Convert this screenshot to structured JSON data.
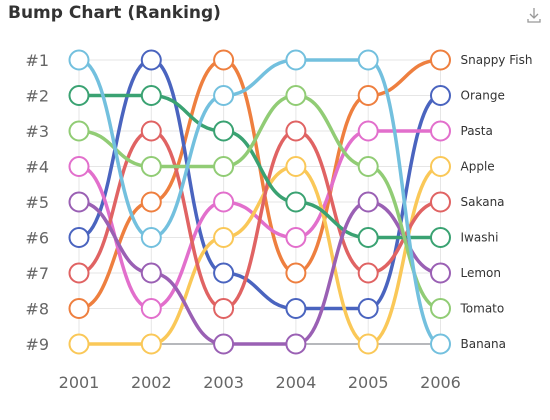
{
  "chart_data": {
    "type": "line",
    "title": "Bump Chart (Ranking)",
    "x": [
      "2001",
      "2002",
      "2003",
      "2004",
      "2005",
      "2006"
    ],
    "y_categories": [
      "#1",
      "#2",
      "#3",
      "#4",
      "#5",
      "#6",
      "#7",
      "#8",
      "#9"
    ],
    "y_inverse": true,
    "series": [
      {
        "name": "Snappy Fish",
        "color": "#ee7f3f",
        "ranks": [
          8,
          5,
          1,
          7,
          2,
          1
        ]
      },
      {
        "name": "Orange",
        "color": "#4a64bf",
        "ranks": [
          6,
          1,
          7,
          8,
          8,
          2
        ]
      },
      {
        "name": "Pasta",
        "color": "#e26fcc",
        "ranks": [
          4,
          8,
          5,
          6,
          3,
          3
        ]
      },
      {
        "name": "Apple",
        "color": "#fac858",
        "ranks": [
          9,
          9,
          6,
          4,
          9,
          4
        ]
      },
      {
        "name": "Sakana",
        "color": "#e06363",
        "ranks": [
          7,
          3,
          8,
          3,
          7,
          5
        ]
      },
      {
        "name": "Iwashi",
        "color": "#3aa272",
        "ranks": [
          2,
          2,
          3,
          5,
          6,
          6
        ]
      },
      {
        "name": "Lemon",
        "color": "#9a60b4",
        "ranks": [
          5,
          7,
          9,
          9,
          5,
          7
        ]
      },
      {
        "name": "Tomato",
        "color": "#91cc75",
        "ranks": [
          3,
          4,
          4,
          2,
          4,
          8
        ]
      },
      {
        "name": "Banana",
        "color": "#73c0de",
        "ranks": [
          1,
          6,
          2,
          1,
          1,
          9
        ]
      }
    ],
    "grid": true,
    "legend": "none",
    "end_labels": "right"
  },
  "toolbox": {
    "download_icon": "download-icon"
  }
}
